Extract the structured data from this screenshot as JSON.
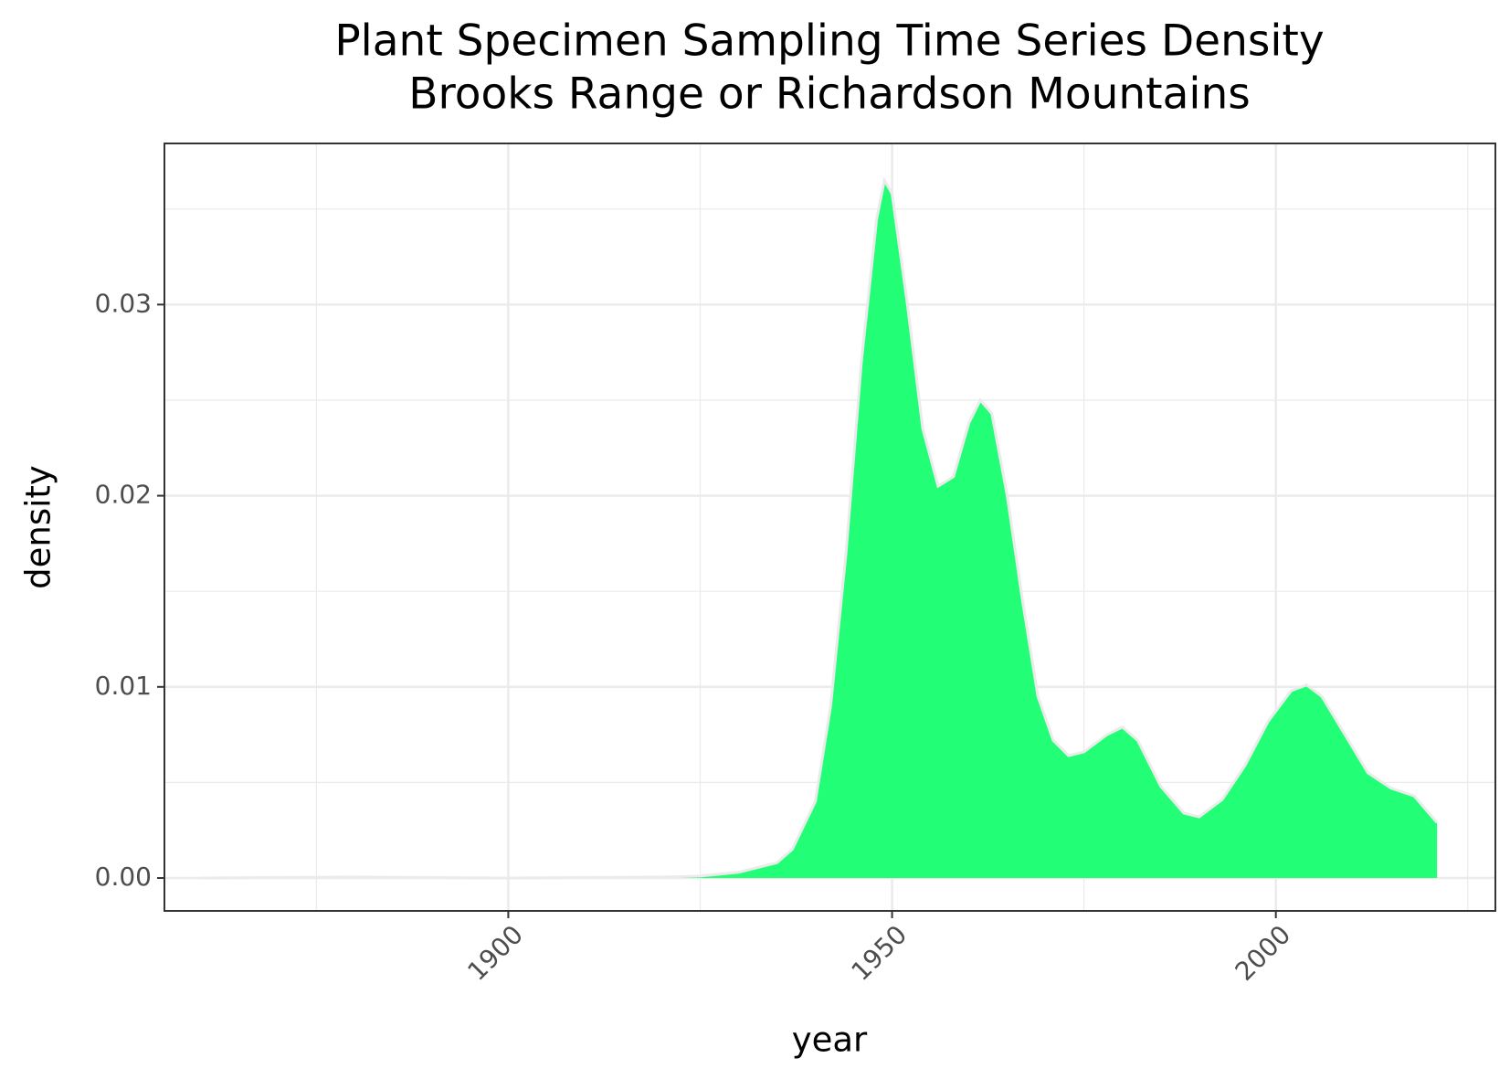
{
  "chart_data": {
    "type": "density",
    "title": [
      "Plant Specimen Sampling Time Series Density",
      "Brooks Range or Richardson Mountains"
    ],
    "x_label": "year",
    "y_label": "density",
    "xlim": [
      1855.2,
      2028.6
    ],
    "ylim": [
      -0.00172,
      0.03843
    ],
    "xticks": [
      1900,
      1950,
      2000
    ],
    "yticks": [
      {
        "value": 0,
        "label": "0.00"
      },
      {
        "value": 0.01,
        "label": "0.01"
      },
      {
        "value": 0.02,
        "label": "0.02"
      },
      {
        "value": 0.03,
        "label": "0.03"
      }
    ],
    "x_minor_ticks": [
      1875,
      1925,
      1975,
      2025
    ],
    "y_minor_ticks": [
      0.005,
      0.015,
      0.025,
      0.035
    ],
    "grid": true,
    "fill": "#22ff77",
    "outline": "#ebebeb",
    "x": [
      1860,
      1880,
      1900,
      1920,
      1925,
      1930,
      1935,
      1937,
      1940,
      1942,
      1944,
      1946,
      1948,
      1949,
      1950,
      1952,
      1954,
      1956,
      1958,
      1960,
      1961.5,
      1963,
      1965,
      1967,
      1969,
      1971,
      1973,
      1975,
      1978,
      1980,
      1982,
      1985,
      1988,
      1990,
      1993,
      1996,
      1999,
      2002,
      2004,
      2006,
      2009,
      2012,
      2015,
      2018,
      2021
    ],
    "values": [
      0,
      5e-05,
      0,
      5e-05,
      0.0001,
      0.0003,
      0.0008,
      0.0015,
      0.004,
      0.009,
      0.017,
      0.027,
      0.0345,
      0.0365,
      0.0358,
      0.03,
      0.0235,
      0.0205,
      0.021,
      0.0238,
      0.025,
      0.0243,
      0.02,
      0.0145,
      0.0095,
      0.0072,
      0.0064,
      0.0066,
      0.0075,
      0.0079,
      0.0072,
      0.0048,
      0.0034,
      0.0032,
      0.0041,
      0.0059,
      0.0082,
      0.0098,
      0.0101,
      0.0095,
      0.0075,
      0.0055,
      0.0047,
      0.0043,
      0.0029
    ]
  }
}
